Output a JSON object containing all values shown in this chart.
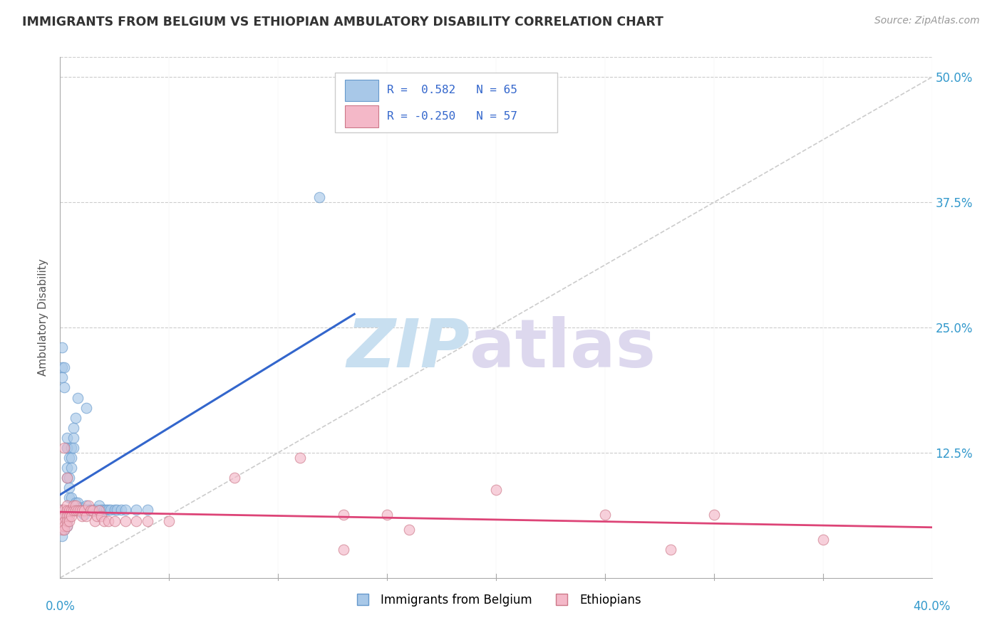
{
  "title": "IMMIGRANTS FROM BELGIUM VS ETHIOPIAN AMBULATORY DISABILITY CORRELATION CHART",
  "source": "Source: ZipAtlas.com",
  "ylabel": "Ambulatory Disability",
  "ytick_labels": [
    "12.5%",
    "25.0%",
    "37.5%",
    "50.0%"
  ],
  "ytick_values": [
    0.125,
    0.25,
    0.375,
    0.5
  ],
  "xmin": 0.0,
  "xmax": 0.4,
  "ymin": 0.0,
  "ymax": 0.52,
  "belgium_color": "#a8c8e8",
  "belgium_edge": "#6699cc",
  "ethiopia_color": "#f4b8c8",
  "ethiopia_edge": "#cc7788",
  "trend_blue": "#3366cc",
  "trend_pink": "#dd4477",
  "diag_color": "#bbbbbb",
  "belgium_R": 0.582,
  "belgium_N": 65,
  "ethiopia_R": -0.25,
  "ethiopia_N": 57,
  "legend_box_color": "#dddddd",
  "legend_text_color": "#3366cc",
  "belgium_scatter": [
    [
      0.001,
      0.21
    ],
    [
      0.001,
      0.23
    ],
    [
      0.002,
      0.19
    ],
    [
      0.002,
      0.21
    ],
    [
      0.001,
      0.2
    ],
    [
      0.003,
      0.13
    ],
    [
      0.003,
      0.14
    ],
    [
      0.003,
      0.13
    ],
    [
      0.003,
      0.11
    ],
    [
      0.003,
      0.1
    ],
    [
      0.004,
      0.12
    ],
    [
      0.004,
      0.1
    ],
    [
      0.004,
      0.09
    ],
    [
      0.004,
      0.08
    ],
    [
      0.005,
      0.13
    ],
    [
      0.005,
      0.12
    ],
    [
      0.005,
      0.11
    ],
    [
      0.005,
      0.08
    ],
    [
      0.006,
      0.15
    ],
    [
      0.006,
      0.14
    ],
    [
      0.006,
      0.13
    ],
    [
      0.007,
      0.16
    ],
    [
      0.007,
      0.075
    ],
    [
      0.008,
      0.18
    ],
    [
      0.008,
      0.075
    ],
    [
      0.009,
      0.07
    ],
    [
      0.01,
      0.07
    ],
    [
      0.01,
      0.065
    ],
    [
      0.011,
      0.068
    ],
    [
      0.011,
      0.063
    ],
    [
      0.012,
      0.17
    ],
    [
      0.012,
      0.072
    ],
    [
      0.013,
      0.068
    ],
    [
      0.014,
      0.068
    ],
    [
      0.015,
      0.068
    ],
    [
      0.016,
      0.068
    ],
    [
      0.017,
      0.068
    ],
    [
      0.018,
      0.072
    ],
    [
      0.019,
      0.068
    ],
    [
      0.02,
      0.068
    ],
    [
      0.021,
      0.068
    ],
    [
      0.022,
      0.068
    ],
    [
      0.023,
      0.068
    ],
    [
      0.025,
      0.068
    ],
    [
      0.026,
      0.068
    ],
    [
      0.028,
      0.068
    ],
    [
      0.001,
      0.068
    ],
    [
      0.001,
      0.062
    ],
    [
      0.001,
      0.058
    ],
    [
      0.002,
      0.062
    ],
    [
      0.002,
      0.056
    ],
    [
      0.002,
      0.052
    ],
    [
      0.002,
      0.048
    ],
    [
      0.003,
      0.057
    ],
    [
      0.003,
      0.052
    ],
    [
      0.001,
      0.06
    ],
    [
      0.001,
      0.055
    ],
    [
      0.001,
      0.05
    ],
    [
      0.002,
      0.06
    ],
    [
      0.002,
      0.055
    ],
    [
      0.119,
      0.38
    ],
    [
      0.03,
      0.068
    ],
    [
      0.035,
      0.068
    ],
    [
      0.04,
      0.068
    ],
    [
      0.001,
      0.042
    ]
  ],
  "ethiopia_scatter": [
    [
      0.001,
      0.068
    ],
    [
      0.001,
      0.062
    ],
    [
      0.001,
      0.056
    ],
    [
      0.001,
      0.052
    ],
    [
      0.001,
      0.048
    ],
    [
      0.002,
      0.068
    ],
    [
      0.002,
      0.062
    ],
    [
      0.002,
      0.056
    ],
    [
      0.002,
      0.052
    ],
    [
      0.002,
      0.048
    ],
    [
      0.003,
      0.072
    ],
    [
      0.003,
      0.067
    ],
    [
      0.003,
      0.062
    ],
    [
      0.003,
      0.057
    ],
    [
      0.003,
      0.052
    ],
    [
      0.004,
      0.067
    ],
    [
      0.004,
      0.062
    ],
    [
      0.004,
      0.057
    ],
    [
      0.005,
      0.067
    ],
    [
      0.005,
      0.062
    ],
    [
      0.006,
      0.072
    ],
    [
      0.006,
      0.067
    ],
    [
      0.007,
      0.072
    ],
    [
      0.007,
      0.067
    ],
    [
      0.008,
      0.067
    ],
    [
      0.009,
      0.067
    ],
    [
      0.01,
      0.067
    ],
    [
      0.01,
      0.062
    ],
    [
      0.011,
      0.067
    ],
    [
      0.012,
      0.062
    ],
    [
      0.013,
      0.072
    ],
    [
      0.014,
      0.067
    ],
    [
      0.015,
      0.067
    ],
    [
      0.016,
      0.057
    ],
    [
      0.017,
      0.062
    ],
    [
      0.018,
      0.067
    ],
    [
      0.019,
      0.062
    ],
    [
      0.02,
      0.057
    ],
    [
      0.022,
      0.057
    ],
    [
      0.025,
      0.057
    ],
    [
      0.03,
      0.057
    ],
    [
      0.035,
      0.057
    ],
    [
      0.04,
      0.057
    ],
    [
      0.05,
      0.057
    ],
    [
      0.11,
      0.12
    ],
    [
      0.08,
      0.1
    ],
    [
      0.13,
      0.063
    ],
    [
      0.15,
      0.063
    ],
    [
      0.16,
      0.048
    ],
    [
      0.2,
      0.088
    ],
    [
      0.25,
      0.063
    ],
    [
      0.3,
      0.063
    ],
    [
      0.35,
      0.038
    ],
    [
      0.002,
      0.13
    ],
    [
      0.003,
      0.1
    ],
    [
      0.13,
      0.028
    ],
    [
      0.28,
      0.028
    ]
  ],
  "belgium_trend_x": [
    0.0,
    0.135
  ],
  "ethiopia_trend_x": [
    0.0,
    0.4
  ]
}
